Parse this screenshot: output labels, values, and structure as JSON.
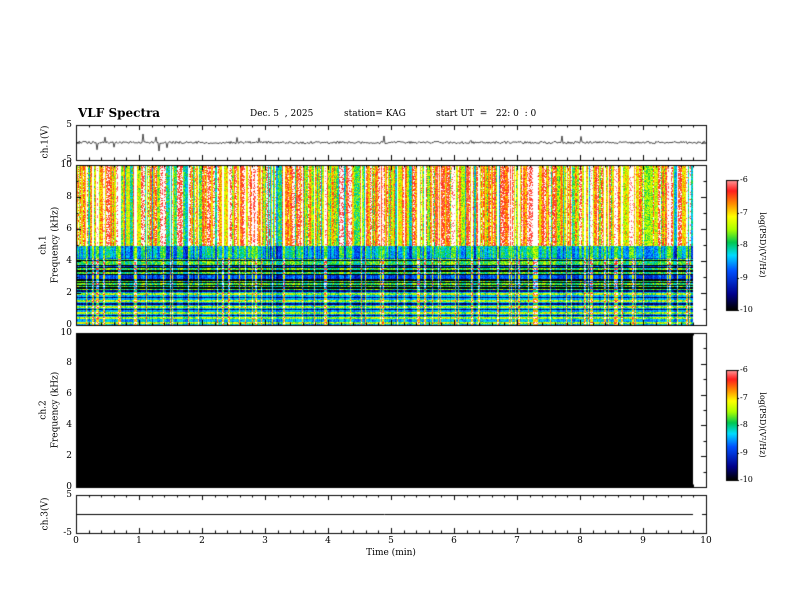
{
  "header": {
    "title": "VLF Spectra",
    "date": "Dec. 5  , 2025",
    "station": "station= KAG",
    "start_ut": "start UT  =   22: 0  : 0"
  },
  "xaxis": {
    "label": "Time (min)",
    "ticks": [
      "0",
      "1",
      "2",
      "3",
      "4",
      "5",
      "6",
      "7",
      "8",
      "9",
      "10"
    ],
    "range_min": [
      0,
      10
    ]
  },
  "colorbar": {
    "label": "log(PSD)(V²/Hz)",
    "ticks": [
      "-6",
      "-7",
      "-8",
      "-9",
      "-10"
    ],
    "range": [
      -6,
      -10
    ],
    "colormap": [
      "#000000",
      "#00008c",
      "#0050ff",
      "#00dcff",
      "#00c850",
      "#aaff00",
      "#ffff00",
      "#ff8c00",
      "#ff1e1e",
      "#ff9696"
    ],
    "overrange_color": "#ffffff"
  },
  "chart_data": [
    {
      "type": "line",
      "name": "ch1-voltage",
      "ylabel": "ch.1(V)",
      "ylim": [
        -5,
        5
      ],
      "yticks": [
        "5",
        "-5"
      ],
      "x_minutes": [
        0,
        10
      ],
      "summary": "Noisy broadband waveform centered on 0 V (~±0.5 V) with sparse impulsive spikes up to about ±3 V across the full 10 min record."
    },
    {
      "type": "heatmap",
      "name": "ch1-spectrogram",
      "channel_label": "ch.1",
      "ylabel": "Frequency (kHz)",
      "ylim": [
        0,
        10
      ],
      "yticks": [
        "10",
        "8",
        "6",
        "4",
        "2",
        "0"
      ],
      "colorbar_range": [
        -10,
        -6
      ],
      "summary": "Dense impulsive VLF activity: near-continuous vertical broadband streaks (white/red/yellow, PSD near -6) over 4-10 kHz, a dark horizontally-banded region between about 2 and 4 kHz, and a blue background with bright cyan/green horizontal lines below 2 kHz; data run ends near 9.8 min."
    },
    {
      "type": "heatmap",
      "name": "ch2-spectrogram",
      "channel_label": "ch.2",
      "ylabel": "Frequency (kHz)",
      "ylim": [
        0,
        10
      ],
      "yticks": [
        "10",
        "8",
        "6",
        "4",
        "2",
        "0"
      ],
      "colorbar_range": [
        -10,
        -6
      ],
      "summary": "No signal: entire panel at or below -10 (black) for all frequencies and times."
    },
    {
      "type": "line",
      "name": "ch3-voltage",
      "ylabel": "ch.3(V)",
      "ylim": [
        -5,
        5
      ],
      "yticks": [
        "5",
        "-5"
      ],
      "summary": "Flat line at 0 V for the entire record."
    }
  ]
}
